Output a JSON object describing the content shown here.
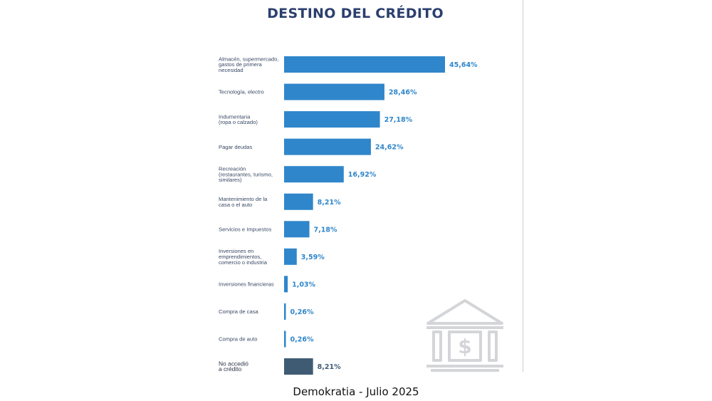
{
  "chart_data": {
    "type": "bar",
    "orientation": "horizontal",
    "title": "DESTINO DEL CRÉDITO",
    "categories": [
      [
        "Almacén, supermercado,",
        "gastos de primera",
        "necesidad"
      ],
      [
        "Tecnología, electro"
      ],
      [
        "Indumentaria",
        "(ropa o calzado)"
      ],
      [
        "Pagar deudas"
      ],
      [
        "Recreación",
        "(restaurantes, turismo,",
        "similares)"
      ],
      [
        "Mantenimiento de la",
        "casa o el auto"
      ],
      [
        "Servicios e Impuestos"
      ],
      [
        "Inversiones en",
        "emprendimientos,",
        "comercio o industria"
      ],
      [
        "Inversiones financieras"
      ],
      [
        "Compra de casa"
      ],
      [
        "Compra de auto"
      ],
      [
        "No accedió",
        "a crédito"
      ]
    ],
    "values": [
      45.64,
      28.46,
      27.18,
      24.62,
      16.92,
      8.21,
      7.18,
      3.59,
      1.03,
      0.26,
      0.26,
      8.21
    ],
    "value_labels": [
      "45,64%",
      "28,46%",
      "27,18%",
      "24,62%",
      "16,92%",
      "8,21%",
      "7,18%",
      "3,59%",
      "1,03%",
      "0,26%",
      "0,26%",
      "8,21%"
    ],
    "colors": {
      "bar": "#2f86cb",
      "bar_no_access": "#3f5b74",
      "value_text": "#2f86cb",
      "value_text_no_access": "#3f5b74",
      "title": "#2b3f6e"
    },
    "xlim": [
      0,
      50
    ],
    "grid": false,
    "legend": "none"
  },
  "watermark": {
    "icon": "bank-dollar-icon"
  },
  "caption": "Demokratia - Julio 2025"
}
